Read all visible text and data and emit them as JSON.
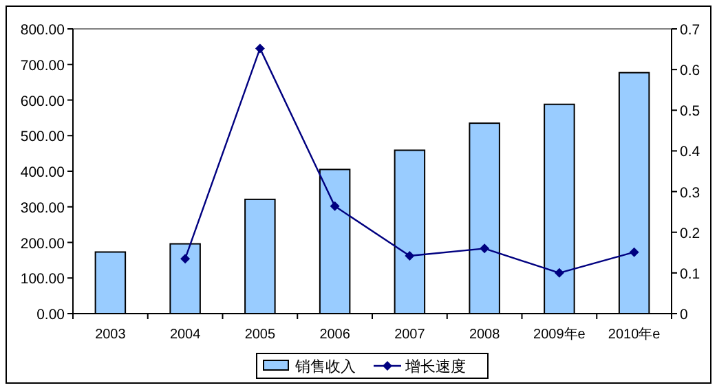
{
  "chart_data": {
    "type": "bar",
    "categories": [
      "2003",
      "2004",
      "2005",
      "2006",
      "2007",
      "2008",
      "2009年e",
      "2010年e"
    ],
    "series": [
      {
        "name": "销售收入",
        "color": "#99ccff",
        "values": [
          173,
          196,
          321,
          405,
          459,
          535,
          588,
          677
        ]
      },
      {
        "name": "增长速度",
        "type": "line",
        "axis": "y2",
        "color": "#000080",
        "marker": "diamond",
        "values": [
          null,
          0.135,
          0.652,
          0.264,
          0.142,
          0.16,
          0.1,
          0.151
        ]
      }
    ],
    "ylim": [
      0,
      800
    ],
    "yticks": [
      {
        "value": 0,
        "label": "0.00"
      },
      {
        "value": 100,
        "label": "100.00"
      },
      {
        "value": 200,
        "label": "200.00"
      },
      {
        "value": 300,
        "label": "300.00"
      },
      {
        "value": 400,
        "label": "400.00"
      },
      {
        "value": 500,
        "label": "500.00"
      },
      {
        "value": 600,
        "label": "600.00"
      },
      {
        "value": 700,
        "label": "700.00"
      },
      {
        "value": 800,
        "label": "800.00"
      }
    ],
    "y2lim": [
      0,
      0.7
    ],
    "y2ticks": [
      0,
      0.1,
      0.2,
      0.3,
      0.4,
      0.5,
      0.6,
      0.7
    ],
    "legend": "bottom",
    "grid": false
  }
}
